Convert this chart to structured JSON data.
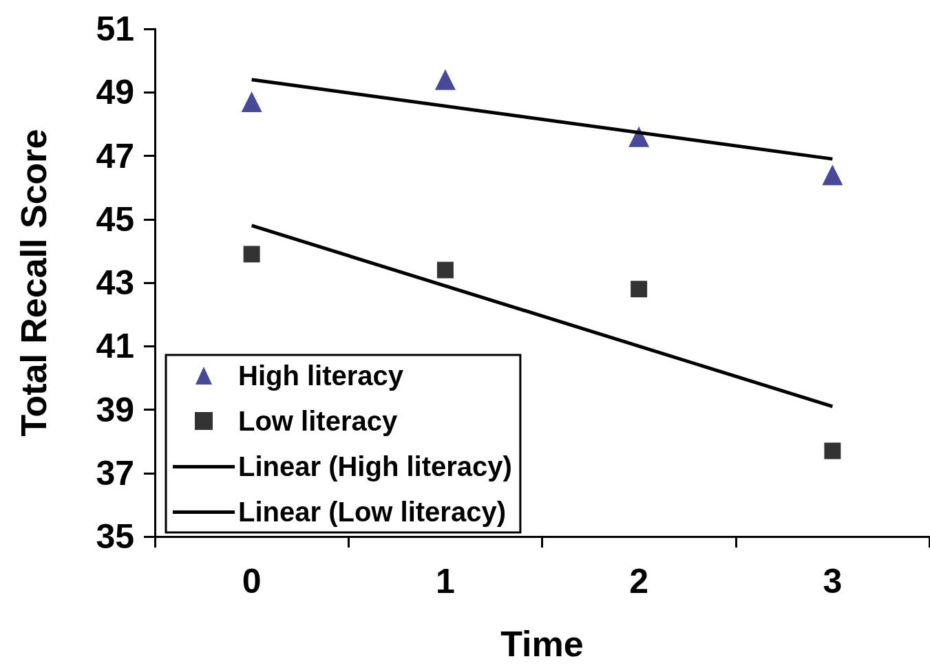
{
  "chart_data": {
    "type": "scatter",
    "xlabel": "Time",
    "ylabel": "Total Recall Score",
    "categories": [
      "0",
      "1",
      "2",
      "3"
    ],
    "ylim": [
      35,
      51
    ],
    "yticks": [
      35,
      37,
      39,
      41,
      43,
      45,
      47,
      49,
      51
    ],
    "grid": false,
    "legend": "bottom left",
    "series": [
      {
        "name": "High literacy",
        "type": "scatter",
        "marker": "triangle",
        "color": "#1c1c80",
        "values": [
          48.7,
          49.4,
          47.6,
          46.4
        ]
      },
      {
        "name": "Low literacy",
        "type": "scatter",
        "marker": "square",
        "color": "#000000",
        "values": [
          43.9,
          43.4,
          42.8,
          37.7
        ]
      },
      {
        "name": "Linear (High literacy)",
        "type": "line",
        "marker": "none",
        "line_style": "solid",
        "color": "#000000",
        "x": [
          "0",
          "3"
        ],
        "values": [
          49.4,
          46.9
        ]
      },
      {
        "name": "Linear (Low literacy)",
        "type": "line",
        "marker": "none",
        "line_style": "solid",
        "color": "#000000",
        "x": [
          "0",
          "3"
        ],
        "values": [
          44.8,
          39.1
        ]
      }
    ]
  }
}
